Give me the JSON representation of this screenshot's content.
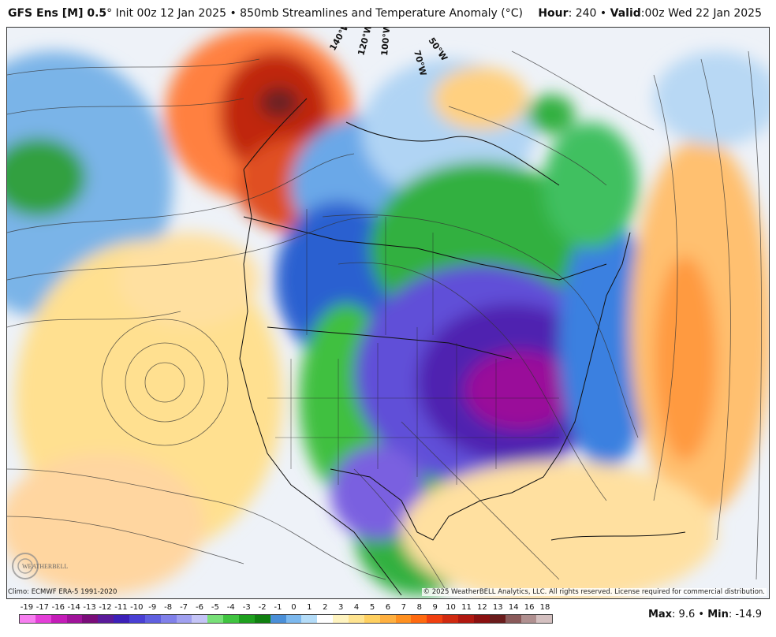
{
  "header": {
    "model": "GFS Ens [M] 0.5",
    "degree": "°",
    "init": "Init 00z 12 Jan 2025",
    "separator": "•",
    "product": "850mb Streamlines and Temperature Anomaly (°C)",
    "hour_label": "Hour",
    "hour_value": ": 240",
    "valid_label": "Valid",
    "valid_value": ":00z Wed 22 Jan 2025"
  },
  "map": {
    "longitude_labels": [
      "140°W",
      "120°W",
      "100°W",
      "70°W",
      "50°W"
    ],
    "climo_note": "Climo: ECMWF ERA-5 1991-2020",
    "copyright": "© 2025 WeatherBELL Analytics, LLC. All rights reserved. License required for commercial distribution.",
    "logo_text": "WEATHERBELL",
    "logo_icon": "weatherbell-logo-icon"
  },
  "colorbar": {
    "labels": [
      "-19",
      "-17",
      "-16",
      "-14",
      "-13",
      "-12",
      "-11",
      "-10",
      "-9",
      "-8",
      "-7",
      "-6",
      "-5",
      "-4",
      "-3",
      "-2",
      "-1",
      "0",
      "1",
      "2",
      "3",
      "4",
      "5",
      "6",
      "7",
      "8",
      "9",
      "10",
      "11",
      "12",
      "13",
      "14",
      "16",
      "18"
    ],
    "colors": [
      "#f77ff0",
      "#e43fd8",
      "#c41cb8",
      "#a0139a",
      "#7a0d7a",
      "#5a1a9a",
      "#3c20b8",
      "#4a40d4",
      "#6060e0",
      "#8080ea",
      "#a0a0f0",
      "#c4c4f6",
      "#78e078",
      "#40c440",
      "#1ea01e",
      "#108010",
      "#4a8fd8",
      "#7cb8ee",
      "#b4dcf8",
      "#ffffff",
      "#fff4c0",
      "#ffe490",
      "#ffd060",
      "#ffb040",
      "#ff9020",
      "#ff6a10",
      "#f04010",
      "#d02a10",
      "#b01810",
      "#8a1010",
      "#6a1c1c",
      "#8a5a5a",
      "#b09090",
      "#d4c0c0"
    ]
  },
  "stats": {
    "max_label": "Max",
    "max_value": ": 9.6",
    "bullet": "•",
    "min_label": "Min",
    "min_value": ": -14.9"
  }
}
